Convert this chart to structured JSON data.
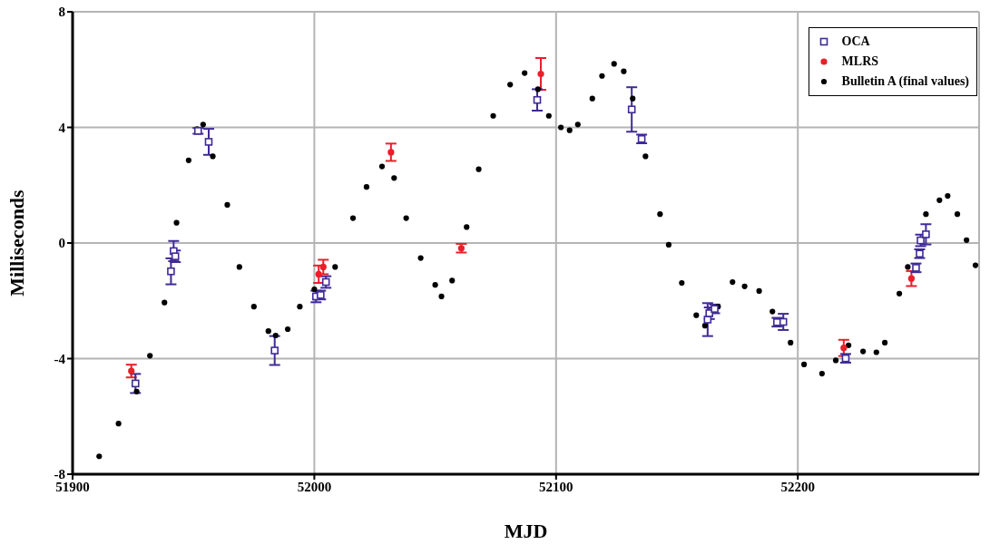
{
  "chart_data": {
    "type": "scatter",
    "xlabel": "MJD",
    "ylabel": "Milliseconds",
    "xlim": [
      51900,
      52275
    ],
    "xticks": [
      51900,
      52000,
      52100,
      52200
    ],
    "ylim": [
      -8,
      8
    ],
    "yticks": [
      -8,
      -4,
      0,
      4,
      8
    ],
    "grid": true,
    "legend": "top right",
    "series": [
      {
        "name": "OCA",
        "color": "#3f2a96",
        "marker": "square",
        "x": [
          51926,
          51940.7,
          51941.8,
          51942.5,
          51951.9,
          51956.3,
          51983.6,
          52000.7,
          52002.6,
          52004.8,
          52092.2,
          52131.3,
          52135.4,
          52162.7,
          52163.4,
          52165.6,
          52191.4,
          52194,
          52219.8,
          52248.9,
          52250.4,
          52250.8,
          52253
        ],
        "values": [
          -4.86,
          -0.98,
          -0.28,
          -0.46,
          3.88,
          3.5,
          -3.72,
          -1.85,
          -1.8,
          -1.35,
          4.95,
          4.62,
          3.6,
          -2.65,
          -2.43,
          -2.28,
          -2.74,
          -2.73,
          -3.99,
          -0.86,
          -0.37,
          0.09,
          0.3
        ],
        "errors": [
          0.33,
          0.45,
          0.35,
          0.2,
          0.1,
          0.45,
          0.5,
          0.2,
          0.15,
          0.2,
          0.37,
          0.77,
          0.15,
          0.57,
          0.2,
          0.15,
          0.15,
          0.28,
          0.15,
          0.15,
          0.15,
          0.2,
          0.35
        ]
      },
      {
        "name": "MLRS",
        "color": "#e8202a",
        "marker": "circle",
        "x": [
          51924.3,
          52001.8,
          52003.7,
          52031.7,
          52060.8,
          52093.7,
          52219,
          52247
        ],
        "values": [
          -4.43,
          -1.08,
          -0.83,
          3.14,
          -0.18,
          5.85,
          -3.63,
          -1.23
        ],
        "errors": [
          0.22,
          0.3,
          0.25,
          0.3,
          0.15,
          0.55,
          0.28,
          0.26
        ]
      },
      {
        "name": "Bulletin A (final values)",
        "color": "#000000",
        "marker": "circle",
        "x": [
          51911,
          51919,
          51926.5,
          51932,
          51938,
          51943,
          51948,
          51951.5,
          51954,
          51958,
          51964,
          51969,
          51975,
          51981,
          51984,
          51989,
          51994,
          52000,
          52008.6,
          52016,
          52021.6,
          52028,
          52033,
          52038,
          52044,
          52050,
          52052.6,
          52057,
          52063,
          52068,
          52074,
          52081,
          52087,
          52092.5,
          52097,
          52102,
          52105.6,
          52109,
          52115,
          52119,
          52124,
          52128,
          52131.7,
          52137,
          52143,
          52146.6,
          52152,
          52158,
          52161.6,
          52167,
          52173,
          52178,
          52184,
          52189.5,
          52197,
          52202.6,
          52210,
          52215.7,
          52221,
          52227,
          52232.5,
          52236,
          52242,
          52245.5,
          52253,
          52258.6,
          52262,
          52266,
          52269.8,
          52273.5
        ],
        "values": [
          -7.38,
          -6.25,
          -5.14,
          -3.9,
          -2.06,
          0.7,
          2.86,
          3.94,
          4.1,
          3.0,
          1.32,
          -0.83,
          -2.2,
          -3.05,
          -3.2,
          -2.98,
          -2.2,
          -1.6,
          -0.83,
          0.86,
          1.94,
          2.65,
          2.25,
          0.86,
          -0.52,
          -1.45,
          -1.85,
          -1.3,
          0.55,
          2.55,
          4.4,
          5.48,
          5.88,
          5.32,
          4.4,
          4.0,
          3.9,
          4.1,
          5.0,
          5.78,
          6.2,
          5.94,
          5.0,
          3.0,
          1.0,
          -0.06,
          -1.38,
          -2.5,
          -2.86,
          -2.2,
          -1.35,
          -1.5,
          -1.66,
          -2.37,
          -3.45,
          -4.2,
          -4.52,
          -4.06,
          -3.54,
          -3.75,
          -3.78,
          -3.45,
          -1.75,
          -0.83,
          1.0,
          1.48,
          1.63,
          1.0,
          0.1,
          -0.77
        ]
      }
    ]
  }
}
